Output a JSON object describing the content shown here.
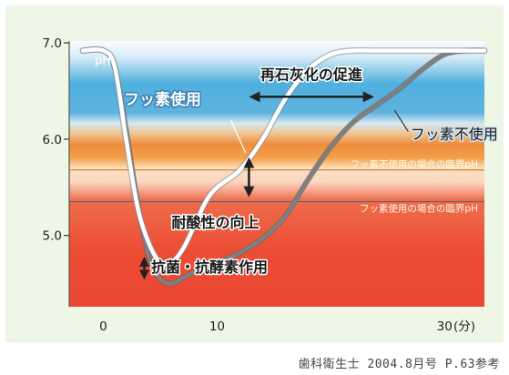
{
  "chart_data": {
    "type": "line",
    "ylabel": "pH",
    "xunit": "(分)",
    "xlim": [
      -3,
      33.5
    ],
    "ylim": [
      4.26,
      7.02
    ],
    "xticks": [
      0,
      10,
      30
    ],
    "yticks": [
      {
        "value": 7.0,
        "label": "7.0"
      },
      {
        "value": 6.0,
        "label": "6.0"
      },
      {
        "value": 5.0,
        "label": "5.0"
      }
    ],
    "critical_lines": [
      {
        "label": "フッ素不使用の場合の臨界pH",
        "value": 5.68
      },
      {
        "label": "フッ素使用の場合の臨界pH",
        "value": 5.35
      }
    ],
    "series": [
      {
        "name": "フッ素使用",
        "color": "#ffffff",
        "x": [
          -1.8,
          0,
          1,
          2,
          3,
          4,
          5,
          6,
          7,
          8,
          9,
          10,
          12,
          14,
          16,
          18,
          20,
          22,
          24,
          26,
          28,
          30,
          32,
          33.5
        ],
        "y": [
          6.92,
          6.92,
          6.75,
          6.0,
          5.3,
          4.92,
          4.72,
          4.72,
          4.86,
          5.1,
          5.35,
          5.5,
          5.68,
          6.0,
          6.42,
          6.72,
          6.88,
          6.92,
          6.92,
          6.92,
          6.92,
          6.92,
          6.92,
          6.92
        ]
      },
      {
        "name": "フッ素不使用",
        "color": "#7f7f7f",
        "x": [
          -1.8,
          0,
          1,
          2,
          3,
          4,
          5,
          6,
          7,
          8,
          9,
          10,
          12,
          14,
          16,
          18,
          20,
          22,
          24,
          26,
          28,
          30,
          32,
          33.5
        ],
        "y": [
          6.92,
          6.92,
          6.75,
          6.1,
          5.35,
          4.78,
          4.55,
          4.5,
          4.56,
          4.62,
          4.68,
          4.72,
          4.82,
          4.97,
          5.2,
          5.58,
          5.92,
          6.18,
          6.35,
          6.52,
          6.72,
          6.88,
          6.92,
          6.92
        ]
      }
    ],
    "annotations": [
      {
        "text": "再石灰化の促進",
        "kind": "double-arrow-horizontal"
      },
      {
        "text": "耐酸性の向上",
        "kind": "double-arrow-vertical"
      },
      {
        "text": "抗菌・抗酵素作用",
        "kind": "double-arrow-vertical"
      }
    ]
  },
  "caption": "歯科衛生士 2004.8月号 P.63参考"
}
